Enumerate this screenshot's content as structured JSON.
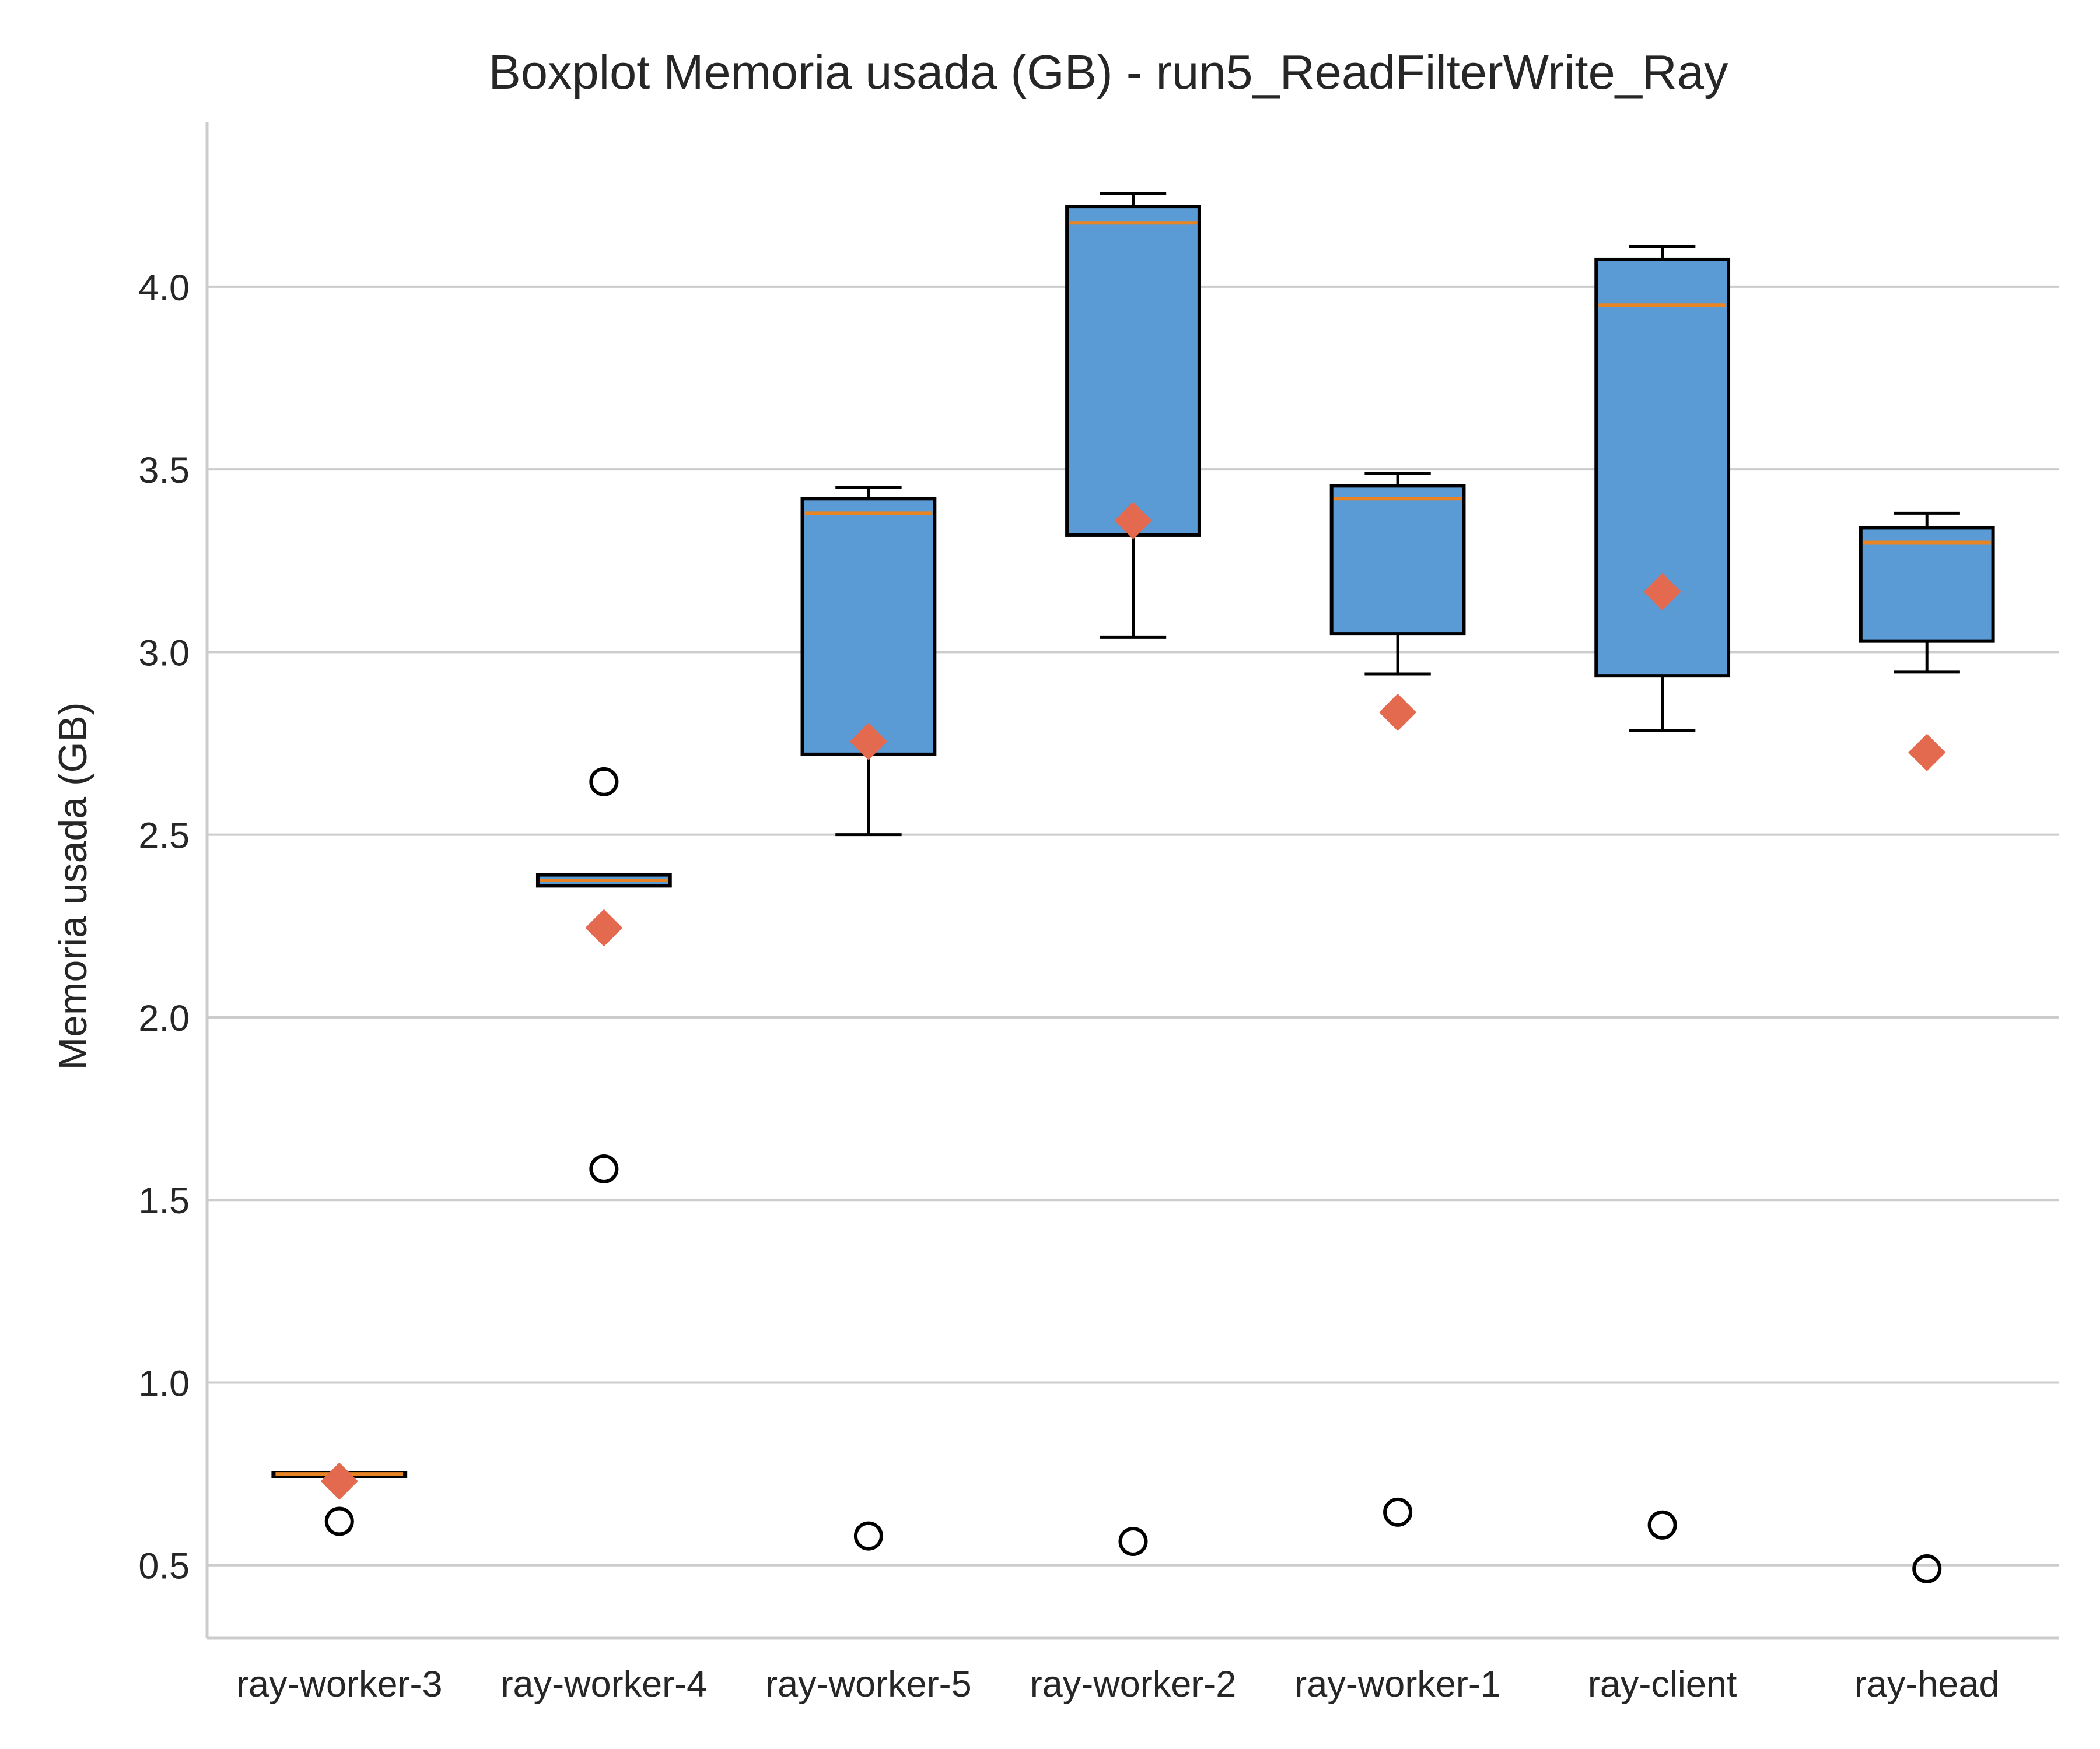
{
  "chart_data": {
    "type": "boxplot",
    "title": "Boxplot Memoria usada (GB) - run5_ReadFilterWrite_Ray",
    "xlabel": "",
    "ylabel": "Memoria usada (GB)",
    "ylim": [
      0.3,
      4.45
    ],
    "yticks": [
      0.5,
      1.0,
      1.5,
      2.0,
      2.5,
      3.0,
      3.5,
      4.0
    ],
    "ytick_labels": [
      "0.5",
      "1.0",
      "1.5",
      "2.0",
      "2.5",
      "3.0",
      "3.5",
      "4.0"
    ],
    "grid": "horizontal",
    "categories": [
      "ray-worker-3",
      "ray-worker-4",
      "ray-worker-5",
      "ray-worker-2",
      "ray-worker-1",
      "ray-client",
      "ray-head"
    ],
    "boxes": [
      {
        "whisker_low": 0.745,
        "q1": 0.745,
        "median": 0.75,
        "q3": 0.753,
        "whisker_high": 0.753,
        "mean": 0.73,
        "outliers": [
          0.62
        ]
      },
      {
        "whisker_low": 2.36,
        "q1": 2.36,
        "median": 2.375,
        "q3": 2.39,
        "whisker_high": 2.39,
        "mean": 2.245,
        "outliers": [
          2.645,
          1.585
        ]
      },
      {
        "whisker_low": 2.5,
        "q1": 2.72,
        "median": 3.38,
        "q3": 3.42,
        "whisker_high": 3.45,
        "mean": 2.755,
        "outliers": [
          0.58
        ]
      },
      {
        "whisker_low": 3.04,
        "q1": 3.32,
        "median": 4.175,
        "q3": 4.22,
        "whisker_high": 4.255,
        "mean": 3.36,
        "outliers": [
          0.565
        ]
      },
      {
        "whisker_low": 2.94,
        "q1": 3.05,
        "median": 3.42,
        "q3": 3.455,
        "whisker_high": 3.49,
        "mean": 2.835,
        "outliers": [
          0.645
        ]
      },
      {
        "whisker_low": 2.785,
        "q1": 2.935,
        "median": 3.95,
        "q3": 4.075,
        "whisker_high": 4.11,
        "mean": 3.165,
        "outliers": [
          0.61
        ]
      },
      {
        "whisker_low": 2.945,
        "q1": 3.03,
        "median": 3.3,
        "q3": 3.34,
        "whisker_high": 3.38,
        "mean": 2.725,
        "outliers": [
          0.49
        ]
      }
    ],
    "colors": {
      "box_fill": "#5b9bd5",
      "box_edge": "#000000",
      "median": "#e98425",
      "mean_marker": "#e46a4f",
      "grid": "#cccccc",
      "axis": "#cccccc",
      "text": "#262626"
    }
  }
}
